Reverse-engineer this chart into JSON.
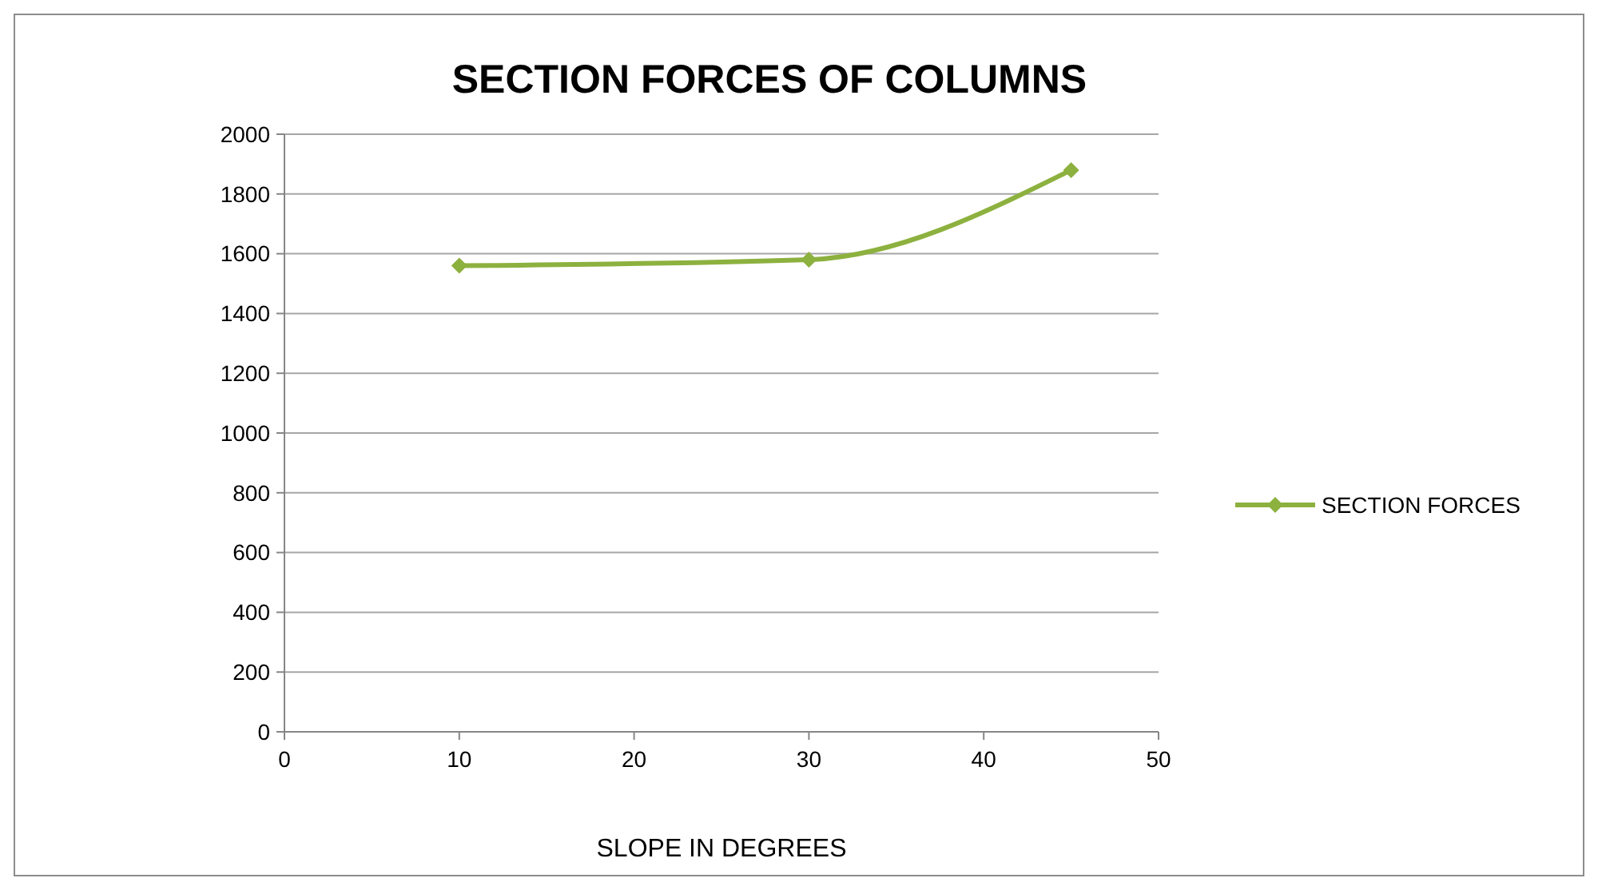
{
  "chart_data": {
    "type": "line",
    "title": "SECTION FORCES OF COLUMNS",
    "xlabel": "SLOPE IN DEGREES",
    "x": [
      10,
      30,
      45
    ],
    "series": [
      {
        "name": "SECTION FORCES",
        "color": "#8db13f",
        "values": [
          1560,
          1580,
          1880
        ]
      }
    ],
    "xlim": [
      0,
      50
    ],
    "xticks": [
      0,
      10,
      20,
      30,
      40,
      50
    ],
    "ylim": [
      0,
      2000
    ],
    "yticks": [
      0,
      200,
      400,
      600,
      800,
      1000,
      1200,
      1400,
      1600,
      1800,
      2000
    ],
    "grid": "y",
    "legend": "right",
    "marker": "diamond",
    "line_style": "solid"
  }
}
